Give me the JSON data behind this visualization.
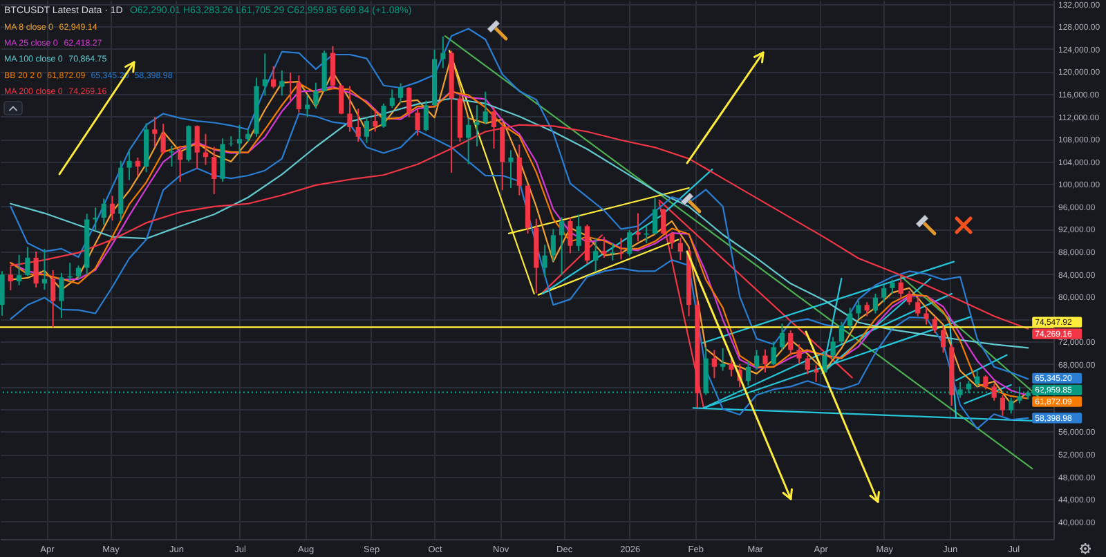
{
  "chart_data": {
    "type": "candlestick",
    "title": "BTCUSDT Latest Data · 1D",
    "subtitle": "O62,290.01 H63,283.26 L61,705.29 C62,959.85 669.84 (+1.08%)",
    "x": [
      "2025-03-11",
      "2025-03-15",
      "2025-03-19",
      "2025-03-23",
      "2025-03-27",
      "2025-03-31",
      "2025-04-04",
      "2025-04-08",
      "2025-04-12",
      "2025-04-16",
      "2025-04-20",
      "2025-04-24",
      "2025-04-28",
      "2025-05-02",
      "2025-05-06",
      "2025-05-10",
      "2025-05-14",
      "2025-05-18",
      "2025-05-22",
      "2025-05-26",
      "2025-05-30",
      "2025-06-03",
      "2025-06-07",
      "2025-06-11",
      "2025-06-15",
      "2025-06-19",
      "2025-06-23",
      "2025-06-27",
      "2025-07-01",
      "2025-07-05",
      "2025-07-09",
      "2025-07-13",
      "2025-07-17",
      "2025-07-21",
      "2025-07-25",
      "2025-07-29",
      "2025-08-02",
      "2025-08-06",
      "2025-08-10",
      "2025-08-14",
      "2025-08-18",
      "2025-08-22",
      "2025-08-26",
      "2025-08-30",
      "2025-09-03",
      "2025-09-07",
      "2025-09-11",
      "2025-09-15",
      "2025-09-19",
      "2025-09-23",
      "2025-09-27",
      "2025-10-01",
      "2025-10-05",
      "2025-10-09",
      "2025-10-13",
      "2025-10-17",
      "2025-10-21",
      "2025-10-25",
      "2025-10-29",
      "2025-11-02",
      "2025-11-06",
      "2025-11-10",
      "2025-11-14",
      "2025-11-18",
      "2025-11-22",
      "2025-11-26",
      "2025-11-30",
      "2025-12-04",
      "2025-12-08",
      "2025-12-12",
      "2025-12-16",
      "2025-12-20",
      "2025-12-24",
      "2025-12-28",
      "2026-01-01",
      "2026-01-05",
      "2026-01-09",
      "2026-01-13",
      "2026-01-17",
      "2026-01-21",
      "2026-01-25",
      "2026-01-29",
      "2026-02-02",
      "2026-02-06",
      "2026-02-10",
      "2026-02-14",
      "2026-02-18",
      "2026-02-22",
      "2026-02-26",
      "2026-03-02",
      "2026-03-06",
      "2026-03-10",
      "2026-03-14",
      "2026-03-18",
      "2026-03-22",
      "2026-03-26",
      "2026-03-30",
      "2026-04-03",
      "2026-04-07",
      "2026-04-11",
      "2026-04-15",
      "2026-04-19",
      "2026-04-23",
      "2026-04-27",
      "2026-05-01",
      "2026-05-05",
      "2026-05-09",
      "2026-05-13",
      "2026-05-17",
      "2026-05-21",
      "2026-05-25",
      "2026-05-29",
      "2026-06-02",
      "2026-06-06",
      "2026-06-10",
      "2026-06-14",
      "2026-06-18",
      "2026-06-22",
      "2026-06-26",
      "2026-06-30",
      "2026-07-04",
      "2026-07-08"
    ],
    "ohlc": [
      [
        78500,
        84500,
        76600,
        83900
      ],
      [
        83900,
        85300,
        81100,
        82700
      ],
      [
        82700,
        87400,
        82000,
        83800
      ],
      [
        83800,
        88800,
        83600,
        86900
      ],
      [
        86900,
        88000,
        81600,
        82300
      ],
      [
        82300,
        88500,
        81200,
        83100
      ],
      [
        83100,
        84700,
        74500,
        79200
      ],
      [
        79200,
        84200,
        76200,
        83400
      ],
      [
        83400,
        86000,
        82700,
        83600
      ],
      [
        83600,
        85500,
        83100,
        85100
      ],
      [
        85100,
        94700,
        83900,
        93700
      ],
      [
        93700,
        95800,
        91700,
        94000
      ],
      [
        94000,
        97400,
        92800,
        96500
      ],
      [
        96500,
        97900,
        93500,
        94700
      ],
      [
        94700,
        104100,
        93400,
        102900
      ],
      [
        102900,
        105800,
        100700,
        104100
      ],
      [
        104100,
        104700,
        101400,
        103100
      ],
      [
        103100,
        110800,
        102100,
        109700
      ],
      [
        109700,
        111900,
        106600,
        108900
      ],
      [
        108900,
        110700,
        105300,
        105600
      ],
      [
        105600,
        106800,
        103100,
        105800
      ],
      [
        105800,
        106800,
        100400,
        104300
      ],
      [
        104300,
        110400,
        104000,
        110300
      ],
      [
        110300,
        110400,
        102700,
        105600
      ],
      [
        105600,
        108900,
        103400,
        104800
      ],
      [
        104800,
        106600,
        98200,
        100900
      ],
      [
        100900,
        108100,
        100400,
        107100
      ],
      [
        107100,
        108500,
        106700,
        107200
      ],
      [
        107200,
        110500,
        105300,
        108000
      ],
      [
        108000,
        109700,
        107500,
        108900
      ],
      [
        108900,
        118900,
        108400,
        117400
      ],
      [
        117400,
        123200,
        115700,
        118600
      ],
      [
        118600,
        120900,
        117000,
        117300
      ],
      [
        117300,
        120200,
        115700,
        118300
      ],
      [
        118300,
        119800,
        114700,
        118000
      ],
      [
        118000,
        119300,
        112700,
        113300
      ],
      [
        113300,
        115800,
        111900,
        114100
      ],
      [
        114100,
        118000,
        113400,
        116500
      ],
      [
        116500,
        123700,
        116400,
        123300
      ],
      [
        123300,
        124500,
        116800,
        117500
      ],
      [
        117500,
        117600,
        112400,
        112500
      ],
      [
        112500,
        117400,
        109300,
        110100
      ],
      [
        110100,
        113400,
        107500,
        108400
      ],
      [
        108400,
        111800,
        107300,
        111200
      ],
      [
        111200,
        113400,
        109300,
        110200
      ],
      [
        110200,
        114300,
        110000,
        113900
      ],
      [
        113900,
        116800,
        113500,
        115300
      ],
      [
        115300,
        117900,
        114400,
        117100
      ],
      [
        117100,
        117200,
        111900,
        112700
      ],
      [
        112700,
        113300,
        108600,
        109600
      ],
      [
        109600,
        114800,
        109400,
        114000
      ],
      [
        114000,
        123900,
        113900,
        122200
      ],
      [
        122200,
        126200,
        120600,
        123300
      ],
      [
        123300,
        123700,
        102000,
        115200
      ],
      [
        115200,
        116000,
        107500,
        108200
      ],
      [
        108200,
        111700,
        103500,
        110500
      ],
      [
        110500,
        114000,
        106700,
        111000
      ],
      [
        111000,
        116400,
        110700,
        112900
      ],
      [
        112900,
        113600,
        106300,
        110100
      ],
      [
        110100,
        111000,
        98900,
        103900
      ],
      [
        103900,
        106000,
        99300,
        104700
      ],
      [
        104700,
        107000,
        98000,
        99700
      ],
      [
        99700,
        99800,
        91200,
        92200
      ],
      [
        92200,
        93800,
        80600,
        85100
      ],
      [
        85100,
        89200,
        83500,
        87300
      ],
      [
        87300,
        92000,
        86300,
        90900
      ],
      [
        90900,
        94100,
        83800,
        93400
      ],
      [
        93400,
        94100,
        87700,
        89000
      ],
      [
        89000,
        94600,
        88100,
        92500
      ],
      [
        92500,
        92800,
        85800,
        86400
      ],
      [
        86400,
        90400,
        84400,
        88100
      ],
      [
        88100,
        90600,
        86900,
        87600
      ],
      [
        87600,
        89500,
        86400,
        87800
      ],
      [
        87800,
        90400,
        86600,
        87600
      ],
      [
        87600,
        91800,
        87200,
        91400
      ],
      [
        91400,
        94800,
        89800,
        91000
      ],
      [
        91000,
        92500,
        89500,
        91200
      ],
      [
        91200,
        97500,
        91000,
        95500
      ],
      [
        95500,
        95600,
        91000,
        91200
      ],
      [
        91200,
        91500,
        88500,
        89500
      ],
      [
        89500,
        90500,
        86500,
        88000
      ],
      [
        88000,
        88500,
        76500,
        78500
      ],
      [
        78500,
        79500,
        60200,
        62800
      ],
      [
        62800,
        71000,
        62500,
        69000
      ],
      [
        69000,
        70500,
        65500,
        67500
      ],
      [
        67500,
        70800,
        66800,
        68000
      ],
      [
        68000,
        68800,
        65800,
        67000
      ],
      [
        67000,
        68000,
        63900,
        65000
      ],
      [
        65000,
        68500,
        64200,
        67500
      ],
      [
        67500,
        70500,
        67000,
        69500
      ],
      [
        69500,
        70600,
        66500,
        68000
      ],
      [
        68000,
        72000,
        67800,
        71000
      ],
      [
        71000,
        75200,
        70500,
        73500
      ],
      [
        73500,
        74000,
        69500,
        70500
      ],
      [
        70500,
        71500,
        68000,
        69000
      ],
      [
        69000,
        69500,
        66200,
        67000
      ],
      [
        67000,
        67800,
        64800,
        66500
      ],
      [
        66500,
        70200,
        66000,
        69500
      ],
      [
        69500,
        72800,
        69000,
        72000
      ],
      [
        72000,
        75500,
        71500,
        74800
      ],
      [
        74800,
        78000,
        74000,
        77000
      ],
      [
        77000,
        79200,
        76000,
        78500
      ],
      [
        78500,
        79000,
        76500,
        77500
      ],
      [
        77500,
        80500,
        77000,
        79800
      ],
      [
        79800,
        82000,
        79000,
        81500
      ],
      [
        81500,
        83000,
        80500,
        82500
      ],
      [
        82500,
        83600,
        79500,
        80500
      ],
      [
        80500,
        81000,
        78500,
        79000
      ],
      [
        79000,
        79800,
        76500,
        77000
      ],
      [
        77000,
        78000,
        75000,
        76000
      ],
      [
        76000,
        76500,
        73500,
        74000
      ],
      [
        74000,
        74800,
        70000,
        71000
      ],
      [
        71000,
        71500,
        60600,
        62500
      ],
      [
        62500,
        64800,
        62000,
        63500
      ],
      [
        63500,
        65000,
        62800,
        64500
      ],
      [
        64500,
        66800,
        64000,
        65800
      ],
      [
        65800,
        66000,
        63500,
        64000
      ],
      [
        64000,
        64500,
        61500,
        62000
      ],
      [
        62000,
        62500,
        58800,
        59800
      ],
      [
        59800,
        62000,
        59200,
        61500
      ],
      [
        61500,
        64000,
        61000,
        62300
      ],
      [
        62290.01,
        63283.26,
        61705.29,
        62959.85
      ]
    ],
    "series": [
      {
        "type": "line",
        "color": "#4caf50",
        "x": [
          "2025-10-06",
          "2026-07-10"
        ],
        "values": [
          126300,
          49400
        ]
      },
      {
        "type": "line",
        "color": "#4caf50",
        "x": [
          "2026-05-09",
          "2026-07-15"
        ],
        "values": [
          83600,
          61500
        ]
      },
      {
        "type": "line",
        "color": "#f23645",
        "x": [
          "2026-01-15",
          "2026-04-16"
        ],
        "values": [
          97100,
          65600
        ]
      },
      {
        "type": "line",
        "color": "#f23645",
        "x": [
          "2025-11-21",
          "2025-12-19"
        ],
        "values": [
          80700,
          90900
        ]
      },
      {
        "type": "line",
        "color": "#f23645",
        "x": [
          "2026-01-15",
          "2026-02-05"
        ],
        "values": [
          96700,
          60200
        ]
      },
      {
        "type": "line",
        "color": "#ffeb3b",
        "x": [
          "2025-10-08",
          "2025-11-17"
        ],
        "values": [
          123700,
          80500
        ]
      },
      {
        "type": "line",
        "color": "#ffeb3b",
        "x": [
          "2025-11-05",
          "2026-01-29"
        ],
        "values": [
          91200,
          99300
        ]
      },
      {
        "type": "line",
        "color": "#ffeb3b",
        "x": [
          "2025-11-19",
          "2026-01-24"
        ],
        "values": [
          80300,
          90100
        ]
      },
      {
        "type": "line",
        "color": "#26c6da",
        "x": [
          "2025-11-21",
          "2026-01-16",
          "2026-02-09"
        ],
        "values": [
          80500,
          94400,
          102600
        ]
      },
      {
        "type": "line",
        "color": "#26c6da",
        "x": [
          "2026-01-31",
          "2026-07-19"
        ],
        "values": [
          60200,
          57800
        ]
      },
      {
        "type": "line",
        "color": "#26c6da",
        "x": [
          "2026-02-04",
          "2026-06-03"
        ],
        "values": [
          71700,
          86200
        ]
      },
      {
        "type": "line",
        "color": "#26c6da",
        "x": [
          "2026-02-05",
          "2026-06-11"
        ],
        "values": [
          60200,
          76400
        ]
      },
      {
        "type": "line",
        "color": "#26c6da",
        "x": [
          "2026-02-05",
          "2026-06-02"
        ],
        "values": [
          60200,
          80500
        ]
      },
      {
        "type": "line",
        "color": "#26c6da",
        "x": [
          "2026-04-02",
          "2026-04-11"
        ],
        "values": [
          66400,
          83200
        ]
      },
      {
        "type": "line",
        "color": "#26c6da",
        "x": [
          "2026-04-02",
          "2026-05-23"
        ],
        "values": [
          66400,
          83200
        ]
      },
      {
        "type": "line",
        "color": "#26c6da",
        "x": [
          "2026-06-01",
          "2026-06-04"
        ],
        "values": [
          76200,
          58600
        ]
      },
      {
        "type": "line",
        "color": "#26c6da",
        "x": [
          "2026-06-04",
          "2026-06-28"
        ],
        "values": [
          65100,
          69600
        ]
      },
      {
        "type": "line",
        "color": "#26c6da",
        "x": [
          "2026-06-08",
          "2026-06-30"
        ],
        "values": [
          61000,
          64300
        ]
      },
      {
        "type": "line",
        "name": "MA 8 close 0",
        "color": "#f0a030",
        "x": [
          "2025-03-15",
          "2025-03-23",
          "2025-03-31",
          "2025-04-08",
          "2025-04-16",
          "2025-04-24",
          "2025-05-02",
          "2025-05-10",
          "2025-05-18",
          "2025-05-26",
          "2025-06-03",
          "2025-06-11",
          "2025-06-19",
          "2025-06-27",
          "2025-07-05",
          "2025-07-13",
          "2025-07-21",
          "2025-07-29",
          "2025-08-06",
          "2025-08-14",
          "2025-08-22",
          "2025-08-30",
          "2025-09-07",
          "2025-09-15",
          "2025-09-23",
          "2025-10-01",
          "2025-10-09",
          "2025-10-17",
          "2025-10-25",
          "2025-11-02",
          "2025-11-10",
          "2025-11-18",
          "2025-11-26",
          "2025-12-04",
          "2025-12-12",
          "2025-12-20",
          "2025-12-28",
          "2026-01-05",
          "2026-01-13",
          "2026-01-21",
          "2026-01-29",
          "2026-02-06",
          "2026-02-14",
          "2026-02-22",
          "2026-03-02",
          "2026-03-10",
          "2026-03-18",
          "2026-03-26",
          "2026-04-03",
          "2026-04-11",
          "2026-04-19",
          "2026-04-27",
          "2026-05-05",
          "2026-05-13",
          "2026-05-21",
          "2026-05-29",
          "2026-06-06",
          "2026-06-14",
          "2026-06-22",
          "2026-06-30",
          "2026-07-08"
        ],
        "values": [
          83000,
          83300,
          84600,
          81200,
          83500,
          89400,
          95100,
          98800,
          103600,
          109300,
          105700,
          107300,
          105200,
          104000,
          107600,
          113200,
          118000,
          118200,
          113700,
          119900,
          115000,
          109300,
          110700,
          114600,
          114900,
          111800,
          122800,
          111700,
          110800,
          111500,
          104300,
          96000,
          86200,
          92200,
          90800,
          87300,
          87700,
          89500,
          91100,
          93400,
          88800,
          70700,
          68300,
          67500,
          66300,
          68800,
          72300,
          69800,
          66800,
          70800,
          75900,
          78000,
          80700,
          81500,
          78000,
          75000,
          66800,
          64000,
          64900,
          60900,
          62949.14
        ]
      },
      {
        "type": "line",
        "name": "MA 25 close 0",
        "color": "#d63ad6",
        "x": [
          "2025-03-15",
          "2025-03-23",
          "2025-03-31",
          "2025-04-08",
          "2025-04-16",
          "2025-04-24",
          "2025-05-02",
          "2025-05-10",
          "2025-05-18",
          "2025-05-26",
          "2025-06-03",
          "2025-06-11",
          "2025-06-19",
          "2025-06-27",
          "2025-07-05",
          "2025-07-13",
          "2025-07-21",
          "2025-07-29",
          "2025-08-06",
          "2025-08-14",
          "2025-08-22",
          "2025-08-30",
          "2025-09-07",
          "2025-09-15",
          "2025-09-23",
          "2025-10-01",
          "2025-10-09",
          "2025-10-17",
          "2025-10-25",
          "2025-11-02",
          "2025-11-10",
          "2025-11-18",
          "2025-11-26",
          "2025-12-04",
          "2025-12-12",
          "2025-12-20",
          "2025-12-28",
          "2026-01-05",
          "2026-01-13",
          "2026-01-21",
          "2026-01-29",
          "2026-02-06",
          "2026-02-14",
          "2026-02-22",
          "2026-03-02",
          "2026-03-10",
          "2026-03-18",
          "2026-03-26",
          "2026-04-03",
          "2026-04-11",
          "2026-04-19",
          "2026-04-27",
          "2026-05-05",
          "2026-05-13",
          "2026-05-21",
          "2026-05-29",
          "2026-06-06",
          "2026-06-14",
          "2026-06-22",
          "2026-06-30",
          "2026-07-08"
        ],
        "values": [
          86000,
          84500,
          83900,
          83000,
          83100,
          84700,
          89300,
          94400,
          99200,
          103900,
          106200,
          107400,
          106100,
          105500,
          105600,
          108300,
          112900,
          116400,
          116600,
          117300,
          116200,
          114700,
          111700,
          111500,
          113400,
          113800,
          116500,
          115400,
          115100,
          111300,
          108900,
          103900,
          95500,
          91400,
          89700,
          90100,
          88600,
          88200,
          89400,
          91300,
          91100,
          84300,
          75900,
          68800,
          67300,
          67500,
          69100,
          70300,
          69600,
          69100,
          71100,
          74900,
          78200,
          80100,
          80100,
          78200,
          73300,
          68600,
          65200,
          63300,
          62418.27
        ]
      },
      {
        "type": "line",
        "name": "MA 100 close 0",
        "color": "#62c9cf",
        "x": [
          "2025-03-15",
          "2025-03-31",
          "2025-04-16",
          "2025-05-02",
          "2025-05-18",
          "2025-06-03",
          "2025-06-19",
          "2025-07-05",
          "2025-07-21",
          "2025-08-06",
          "2025-08-22",
          "2025-09-07",
          "2025-09-23",
          "2025-10-09",
          "2025-10-25",
          "2025-11-10",
          "2025-11-26",
          "2025-12-12",
          "2025-12-28",
          "2026-01-13",
          "2026-01-29",
          "2026-02-14",
          "2026-03-02",
          "2026-03-18",
          "2026-04-03",
          "2026-04-19",
          "2026-05-05",
          "2026-05-21",
          "2026-06-06",
          "2026-06-22",
          "2026-07-08"
        ],
        "values": [
          96500,
          94800,
          92700,
          90600,
          90300,
          92500,
          94600,
          97600,
          101700,
          106600,
          111100,
          112500,
          114200,
          115200,
          114300,
          112000,
          109300,
          106200,
          102500,
          98800,
          96000,
          91000,
          86800,
          82300,
          79300,
          75400,
          74100,
          73200,
          72300,
          71500,
          70864.75
        ]
      },
      {
        "type": "line",
        "name": "BB 20 2 0",
        "color": "#f57c00",
        "x": [
          "2025-03-15",
          "2025-03-23",
          "2025-03-31",
          "2025-04-08",
          "2025-04-16",
          "2025-04-24",
          "2025-05-02",
          "2025-05-10",
          "2025-05-18",
          "2025-05-26",
          "2025-06-03",
          "2025-06-11",
          "2025-06-19",
          "2025-06-27",
          "2025-07-05",
          "2025-07-13",
          "2025-07-21",
          "2025-07-29",
          "2025-08-06",
          "2025-08-14",
          "2025-08-22",
          "2025-08-30",
          "2025-09-07",
          "2025-09-15",
          "2025-09-23",
          "2025-10-01",
          "2025-10-09",
          "2025-10-17",
          "2025-10-25",
          "2025-11-02",
          "2025-11-10",
          "2025-11-18",
          "2025-11-26",
          "2025-12-04",
          "2025-12-12",
          "2025-12-20",
          "2025-12-28",
          "2026-01-05",
          "2026-01-13",
          "2026-01-21",
          "2026-01-29",
          "2026-02-06",
          "2026-02-14",
          "2026-02-22",
          "2026-03-02",
          "2026-03-10",
          "2026-03-18",
          "2026-03-26",
          "2026-04-03",
          "2026-04-11",
          "2026-04-19",
          "2026-04-27",
          "2026-05-05",
          "2026-05-13",
          "2026-05-21",
          "2026-05-29",
          "2026-06-06",
          "2026-06-14",
          "2026-06-22",
          "2026-06-30",
          "2026-07-08"
        ],
        "values": [
          86000,
          84000,
          83900,
          83100,
          82300,
          85000,
          90600,
          96400,
          100300,
          105700,
          106600,
          107000,
          106200,
          105700,
          105600,
          109700,
          114000,
          117900,
          116200,
          117000,
          116800,
          114400,
          111500,
          111800,
          113800,
          113700,
          116400,
          115800,
          113600,
          110500,
          108500,
          102100,
          93800,
          89800,
          90600,
          89900,
          88500,
          88500,
          89800,
          92100,
          91100,
          83000,
          78000,
          69500,
          67500,
          67500,
          69800,
          70500,
          69500,
          69000,
          72000,
          76000,
          78900,
          80400,
          80100,
          77300,
          72100,
          64500,
          63300,
          62300,
          61872.09
        ],
        "value_labels": [
          null,
          null,
          null,
          null,
          null,
          null,
          null,
          null,
          null,
          null,
          null,
          null,
          null,
          null,
          null,
          null,
          null,
          null,
          null,
          null,
          null,
          null,
          null,
          null,
          null,
          null,
          null,
          null,
          null,
          null,
          null,
          null,
          null,
          null,
          null,
          null,
          null,
          null,
          null,
          null,
          null,
          null,
          null,
          null,
          null,
          null,
          null,
          null,
          null,
          null,
          null,
          null,
          null,
          null,
          null,
          null,
          null,
          null,
          null,
          null,
          "61,872.09"
        ]
      },
      {
        "type": "line",
        "color": "#2a7fd4",
        "x": [
          "2025-03-15",
          "2025-03-23",
          "2025-03-31",
          "2025-04-08",
          "2025-04-16",
          "2025-04-24",
          "2025-05-02",
          "2025-05-10",
          "2025-05-18",
          "2025-05-26",
          "2025-06-03",
          "2025-06-11",
          "2025-06-19",
          "2025-06-27",
          "2025-07-05",
          "2025-07-13",
          "2025-07-21",
          "2025-07-29",
          "2025-08-06",
          "2025-08-14",
          "2025-08-22",
          "2025-08-30",
          "2025-09-07",
          "2025-09-15",
          "2025-09-23",
          "2025-10-01",
          "2025-10-09",
          "2025-10-17",
          "2025-10-25",
          "2025-11-02",
          "2025-11-10",
          "2025-11-18",
          "2025-11-26",
          "2025-12-04",
          "2025-12-12",
          "2025-12-20",
          "2025-12-28",
          "2026-01-05",
          "2026-01-13",
          "2026-01-21",
          "2026-01-29",
          "2026-02-06",
          "2026-02-14",
          "2026-02-22",
          "2026-03-02",
          "2026-03-10",
          "2026-03-18",
          "2026-03-26",
          "2026-04-03",
          "2026-04-11",
          "2026-04-19",
          "2026-04-27",
          "2026-05-05",
          "2026-05-13",
          "2026-05-21",
          "2026-05-29",
          "2026-06-06",
          "2026-06-14",
          "2026-06-22",
          "2026-06-30",
          "2026-07-08"
        ],
        "values": [
          96000,
          89500,
          88000,
          88500,
          87000,
          93000,
          99500,
          106000,
          110500,
          112500,
          111700,
          111200,
          110900,
          110400,
          109700,
          117000,
          123500,
          123300,
          120400,
          123000,
          123000,
          122300,
          117500,
          117100,
          118100,
          119400,
          126300,
          127600,
          125700,
          119500,
          116500,
          115000,
          109100,
          100100,
          97700,
          95300,
          92000,
          92500,
          95100,
          97700,
          96700,
          99000,
          96000,
          80000,
          72500,
          71500,
          75500,
          76000,
          75000,
          74500,
          79500,
          82000,
          83500,
          84500,
          84000,
          83000,
          83500,
          72500,
          67500,
          66500,
          65345.2
        ],
        "value_labels": [
          null,
          null,
          null,
          null,
          null,
          null,
          null,
          null,
          null,
          null,
          null,
          null,
          null,
          null,
          null,
          null,
          null,
          null,
          null,
          null,
          null,
          null,
          null,
          null,
          null,
          null,
          null,
          null,
          null,
          null,
          null,
          null,
          null,
          null,
          null,
          null,
          null,
          null,
          null,
          null,
          null,
          null,
          null,
          null,
          null,
          null,
          null,
          null,
          null,
          null,
          null,
          null,
          null,
          null,
          null,
          null,
          null,
          null,
          null,
          null,
          "65,345.20"
        ]
      },
      {
        "type": "line",
        "color": "#2a7fd4",
        "x": [
          "2025-03-15",
          "2025-03-23",
          "2025-03-31",
          "2025-04-08",
          "2025-04-16",
          "2025-04-24",
          "2025-05-02",
          "2025-05-10",
          "2025-05-18",
          "2025-05-26",
          "2025-06-03",
          "2025-06-11",
          "2025-06-19",
          "2025-06-27",
          "2025-07-05",
          "2025-07-13",
          "2025-07-21",
          "2025-07-29",
          "2025-08-06",
          "2025-08-14",
          "2025-08-22",
          "2025-08-30",
          "2025-09-07",
          "2025-09-15",
          "2025-09-23",
          "2025-10-01",
          "2025-10-09",
          "2025-10-17",
          "2025-10-25",
          "2025-11-02",
          "2025-11-10",
          "2025-11-18",
          "2025-11-26",
          "2025-12-04",
          "2025-12-12",
          "2025-12-20",
          "2025-12-28",
          "2026-01-05",
          "2026-01-13",
          "2026-01-21",
          "2026-01-29",
          "2026-02-06",
          "2026-02-14",
          "2026-02-22",
          "2026-03-02",
          "2026-03-10",
          "2026-03-18",
          "2026-03-26",
          "2026-04-03",
          "2026-04-11",
          "2026-04-19",
          "2026-04-27",
          "2026-05-05",
          "2026-05-13",
          "2026-05-21",
          "2026-05-29",
          "2026-06-06",
          "2026-06-14",
          "2026-06-22",
          "2026-06-30",
          "2026-07-08"
        ],
        "values": [
          76000,
          78500,
          79800,
          77700,
          77600,
          77000,
          81700,
          86800,
          90100,
          98900,
          101500,
          102800,
          101500,
          101000,
          101500,
          102400,
          104500,
          112500,
          112000,
          111000,
          110600,
          106500,
          105500,
          106500,
          109500,
          108000,
          106500,
          104000,
          101500,
          101500,
          100500,
          89200,
          78500,
          79500,
          83500,
          84500,
          85000,
          84500,
          84500,
          86500,
          85500,
          67000,
          60000,
          59000,
          62500,
          63500,
          64000,
          65000,
          64000,
          63500,
          64500,
          70000,
          74300,
          76300,
          76200,
          71600,
          60700,
          56500,
          59100,
          58100,
          58398.98
        ],
        "value_labels": [
          null,
          null,
          null,
          null,
          null,
          null,
          null,
          null,
          null,
          null,
          null,
          null,
          null,
          null,
          null,
          null,
          null,
          null,
          null,
          null,
          null,
          null,
          null,
          null,
          null,
          null,
          null,
          null,
          null,
          null,
          null,
          null,
          null,
          null,
          null,
          null,
          null,
          null,
          null,
          null,
          null,
          null,
          null,
          null,
          null,
          null,
          null,
          null,
          null,
          null,
          null,
          null,
          null,
          null,
          null,
          null,
          null,
          null,
          null,
          null,
          "58,398.98"
        ]
      },
      {
        "type": "line",
        "name": "MA 200 close 0",
        "color": "#f23645",
        "x": [
          "2025-03-15",
          "2025-03-31",
          "2025-04-16",
          "2025-05-02",
          "2025-05-18",
          "2025-06-03",
          "2025-06-19",
          "2025-07-05",
          "2025-07-21",
          "2025-08-06",
          "2025-08-22",
          "2025-09-07",
          "2025-09-23",
          "2025-10-09",
          "2025-10-25",
          "2025-11-10",
          "2025-11-26",
          "2025-12-12",
          "2025-12-28",
          "2026-01-13",
          "2026-01-29",
          "2026-02-14",
          "2026-03-02",
          "2026-03-18",
          "2026-04-03",
          "2026-04-19",
          "2026-05-05",
          "2026-05-21",
          "2026-06-06",
          "2026-06-22",
          "2026-07-08"
        ],
        "values": [
          85500,
          86500,
          87800,
          90100,
          93100,
          95000,
          96000,
          96500,
          98000,
          99800,
          100800,
          101600,
          103500,
          106300,
          109300,
          110500,
          110300,
          109300,
          107800,
          106500,
          104500,
          101000,
          97500,
          94000,
          90500,
          86800,
          84400,
          82000,
          79300,
          76500,
          74269.16
        ],
        "value_labels": [
          null,
          null,
          null,
          null,
          null,
          null,
          null,
          null,
          null,
          null,
          null,
          null,
          null,
          null,
          null,
          null,
          null,
          null,
          null,
          null,
          null,
          null,
          null,
          null,
          null,
          null,
          null,
          null,
          null,
          null,
          "74,269.16"
        ]
      }
    ],
    "annotations": [
      "62,949.14",
      "62,418.27",
      "70,864.75",
      "61,872.09",
      "65,345.20",
      "58,398.98",
      "74,269.16"
    ],
    "ref_lines": [
      {
        "axis": "y",
        "value": 74547.92,
        "label": "74,547.92",
        "color": "#ffeb3b"
      },
      {
        "axis": "y",
        "value": 62959.85,
        "label": "62,959.85",
        "color": "#089981",
        "line_style": "dotted"
      }
    ],
    "xlim": [
      "2025-03-10",
      "2026-07-20"
    ],
    "ylim": [
      36900,
      132700
    ],
    "xticks": [
      {
        "value": "2025-04-01",
        "label": "Apr"
      },
      {
        "value": "2025-05-01",
        "label": "May"
      },
      {
        "value": "2025-06-01",
        "label": "Jun"
      },
      {
        "value": "2025-07-01",
        "label": "Jul"
      },
      {
        "value": "2025-08-01",
        "label": "Aug"
      },
      {
        "value": "2025-09-01",
        "label": "Sep"
      },
      {
        "value": "2025-10-01",
        "label": "Oct"
      },
      {
        "value": "2025-11-01",
        "label": "Nov"
      },
      {
        "value": "2025-12-01",
        "label": "Dec"
      },
      {
        "value": "2026-01-01",
        "label": "2026"
      },
      {
        "value": "2026-02-01",
        "label": "Feb"
      },
      {
        "value": "2026-03-01",
        "label": "Mar"
      },
      {
        "value": "2026-04-01",
        "label": "Apr"
      },
      {
        "value": "2026-05-01",
        "label": "May"
      },
      {
        "value": "2026-06-01",
        "label": "Jun"
      },
      {
        "value": "2026-07-01",
        "label": "Jul"
      }
    ],
    "yticks": [
      {
        "value": 40000,
        "label": "40,000.00"
      },
      {
        "value": 44000,
        "label": "44,000.00"
      },
      {
        "value": 48000,
        "label": "48,000.00"
      },
      {
        "value": 52000,
        "label": "52,000.00"
      },
      {
        "value": 56000,
        "label": "56,000.00"
      },
      {
        "value": 60000,
        "label": null
      },
      {
        "value": 64000,
        "label": null
      },
      {
        "value": 68000,
        "label": "68,000.00"
      },
      {
        "value": 72000,
        "label": "72,000.00"
      },
      {
        "value": 76000,
        "label": null
      },
      {
        "value": 80000,
        "label": "80,000.00"
      },
      {
        "value": 84000,
        "label": "84,000.00"
      },
      {
        "value": 88000,
        "label": "88,000.00"
      },
      {
        "value": 92000,
        "label": "92,000.00"
      },
      {
        "value": 96000,
        "label": "96,000.00"
      },
      {
        "value": 100000,
        "label": "100,000.00"
      },
      {
        "value": 104000,
        "label": "104,000.00"
      },
      {
        "value": 108000,
        "label": "108,000.00"
      },
      {
        "value": 112000,
        "label": "112,000.00"
      },
      {
        "value": 116000,
        "label": "116,000.00"
      },
      {
        "value": 120000,
        "label": "120,000.00"
      },
      {
        "value": 124000,
        "label": "124,000.00"
      },
      {
        "value": 128000,
        "label": "128,000.00"
      },
      {
        "value": 132000,
        "label": "132,000.00"
      }
    ],
    "grid": true,
    "legend": "top left"
  }
}
